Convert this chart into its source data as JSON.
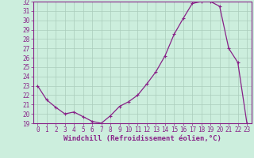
{
  "hours": [
    0,
    1,
    2,
    3,
    4,
    5,
    6,
    7,
    8,
    9,
    10,
    11,
    12,
    13,
    14,
    15,
    16,
    17,
    18,
    19,
    20,
    21,
    22,
    23
  ],
  "values": [
    23.0,
    21.5,
    20.7,
    20.0,
    20.2,
    19.7,
    19.2,
    19.0,
    19.8,
    20.8,
    21.3,
    22.0,
    23.2,
    24.5,
    26.2,
    28.5,
    30.2,
    31.8,
    32.0,
    32.0,
    31.5,
    27.0,
    25.5,
    19.0
  ],
  "ylim_min": 19,
  "ylim_max": 32,
  "yticks": [
    19,
    20,
    21,
    22,
    23,
    24,
    25,
    26,
    27,
    28,
    29,
    30,
    31,
    32
  ],
  "xticks": [
    0,
    1,
    2,
    3,
    4,
    5,
    6,
    7,
    8,
    9,
    10,
    11,
    12,
    13,
    14,
    15,
    16,
    17,
    18,
    19,
    20,
    21,
    22,
    23
  ],
  "line_color": "#882288",
  "marker": "+",
  "marker_size": 3,
  "marker_lw": 0.8,
  "line_width": 0.9,
  "bg_color": "#cceedd",
  "grid_color": "#aaccbb",
  "xlabel": "Windchill (Refroidissement éolien,°C)",
  "xlabel_color": "#882288",
  "xlabel_fontsize": 6.5,
  "tick_color": "#882288",
  "tick_fontsize": 5.5,
  "spine_color": "#882288"
}
